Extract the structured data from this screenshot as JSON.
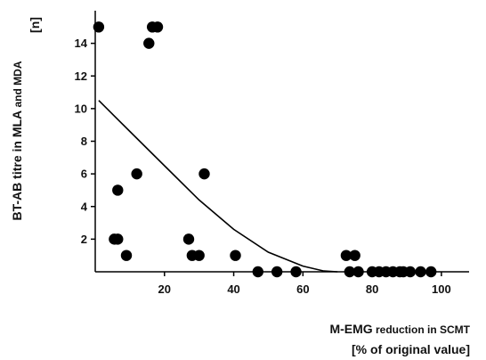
{
  "chart_data": {
    "type": "scatter",
    "title": "",
    "ylabel_line1_main": "BT-AB titre in MLA",
    "ylabel_line1_small": " and MDA",
    "ylabel_line2": "[n]",
    "xlabel_line1_main": "M-EMG",
    "xlabel_line1_small": " reduction in SCMT",
    "xlabel_line2": "[% of original value]",
    "xlim": [
      0,
      108
    ],
    "ylim": [
      0,
      16
    ],
    "x_ticks": [
      20,
      40,
      60,
      80,
      100
    ],
    "y_ticks": [
      2,
      4,
      6,
      8,
      10,
      12,
      14
    ],
    "grid": false,
    "points": [
      {
        "x": 1,
        "y": 15
      },
      {
        "x": 15.5,
        "y": 14
      },
      {
        "x": 16.5,
        "y": 15
      },
      {
        "x": 18,
        "y": 15
      },
      {
        "x": 5.5,
        "y": 2
      },
      {
        "x": 6.5,
        "y": 2
      },
      {
        "x": 6.5,
        "y": 5
      },
      {
        "x": 9,
        "y": 1
      },
      {
        "x": 12,
        "y": 6
      },
      {
        "x": 27,
        "y": 2
      },
      {
        "x": 28,
        "y": 1
      },
      {
        "x": 30,
        "y": 1
      },
      {
        "x": 31.5,
        "y": 6
      },
      {
        "x": 40.5,
        "y": 1
      },
      {
        "x": 47,
        "y": 0
      },
      {
        "x": 52.5,
        "y": 0
      },
      {
        "x": 58,
        "y": 0
      },
      {
        "x": 72.5,
        "y": 1
      },
      {
        "x": 75,
        "y": 1
      },
      {
        "x": 73.5,
        "y": 0
      },
      {
        "x": 76,
        "y": 0
      },
      {
        "x": 80,
        "y": 0
      },
      {
        "x": 82,
        "y": 0
      },
      {
        "x": 84,
        "y": 0
      },
      {
        "x": 86,
        "y": 0
      },
      {
        "x": 88,
        "y": 0
      },
      {
        "x": 89,
        "y": 0
      },
      {
        "x": 91,
        "y": 0
      },
      {
        "x": 94,
        "y": 0
      },
      {
        "x": 97,
        "y": 0
      }
    ],
    "fit_curve": {
      "type": "quadratic",
      "points": [
        {
          "x": 1,
          "y": 10.5
        },
        {
          "x": 10,
          "y": 8.6
        },
        {
          "x": 20,
          "y": 6.5
        },
        {
          "x": 30,
          "y": 4.4
        },
        {
          "x": 40,
          "y": 2.6
        },
        {
          "x": 50,
          "y": 1.2
        },
        {
          "x": 60,
          "y": 0.35
        },
        {
          "x": 66,
          "y": 0.05
        },
        {
          "x": 70,
          "y": 0
        }
      ]
    },
    "colors": {
      "marker": "#000000",
      "line": "#000000",
      "axis": "#000000"
    }
  }
}
